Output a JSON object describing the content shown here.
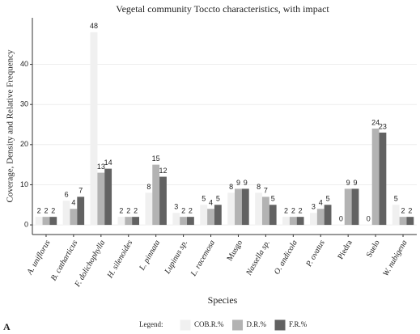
{
  "chart_data": {
    "type": "bar",
    "title": "Vegetal community Toccto characteristics, with impact",
    "x_label": "Species",
    "y_label": "Coverage, Density and Relative Frequency",
    "legend_title": "Legend:",
    "panel_label": "A",
    "categories": [
      "A. uniflorus",
      "B. catharticus",
      "F. dolichophylla",
      "H. silenoides",
      "L. pinnata",
      "Lupinus sp.",
      "L. racemosa",
      "Musgo",
      "Nassella sp.",
      "O. andicola",
      "P. ovatus",
      "Piedra",
      "Suelo",
      "W. nubigena"
    ],
    "series": [
      {
        "name": "COB.R.%",
        "color": "#f0f0f0",
        "values": [
          2,
          6,
          48,
          2,
          8,
          3,
          5,
          8,
          8,
          2,
          3,
          0,
          0,
          5
        ]
      },
      {
        "name": "D.R.%",
        "color": "#b3b3b3",
        "values": [
          2,
          4,
          13,
          2,
          15,
          2,
          4,
          9,
          7,
          2,
          4,
          9,
          24,
          2
        ]
      },
      {
        "name": "F.R.%",
        "color": "#626262",
        "values": [
          2,
          7,
          14,
          2,
          12,
          2,
          5,
          9,
          5,
          2,
          5,
          9,
          23,
          2
        ]
      }
    ],
    "ylim": [
      -2.4,
      51.6
    ],
    "yticks": [
      0,
      10,
      20,
      30,
      40
    ],
    "grid": true,
    "legend": "bottom"
  }
}
